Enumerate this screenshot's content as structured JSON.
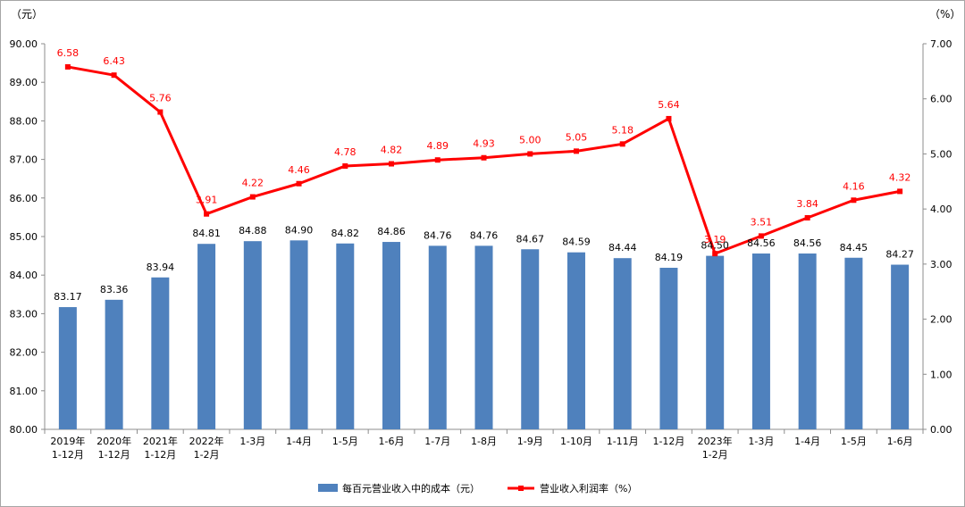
{
  "chart_data": {
    "type": "bar",
    "title": "",
    "y_left_unit": "（元）",
    "y_right_unit": "（%）",
    "y_left_lim": [
      80,
      90
    ],
    "y_left_ticks": [
      "80.00",
      "81.00",
      "82.00",
      "83.00",
      "84.00",
      "85.00",
      "86.00",
      "87.00",
      "88.00",
      "89.00",
      "90.00"
    ],
    "y_right_lim": [
      0,
      7
    ],
    "y_right_ticks": [
      "0.00",
      "1.00",
      "2.00",
      "3.00",
      "4.00",
      "5.00",
      "6.00",
      "7.00"
    ],
    "categories": [
      [
        "2019年",
        "1-12月"
      ],
      [
        "2020年",
        "1-12月"
      ],
      [
        "2021年",
        "1-12月"
      ],
      [
        "2022年",
        "1-2月"
      ],
      [
        "1-3月"
      ],
      [
        "1-4月"
      ],
      [
        "1-5月"
      ],
      [
        "1-6月"
      ],
      [
        "1-7月"
      ],
      [
        "1-8月"
      ],
      [
        "1-9月"
      ],
      [
        "1-10月"
      ],
      [
        "1-11月"
      ],
      [
        "1-12月"
      ],
      [
        "2023年",
        "1-2月"
      ],
      [
        "1-3月"
      ],
      [
        "1-4月"
      ],
      [
        "1-5月"
      ],
      [
        "1-6月"
      ]
    ],
    "series": [
      {
        "name": "每百元营业收入中的成本（元）",
        "type": "bar",
        "axis": "left",
        "color": "#4f81bd",
        "values": [
          83.17,
          83.36,
          83.94,
          84.81,
          84.88,
          84.9,
          84.82,
          84.86,
          84.76,
          84.76,
          84.67,
          84.59,
          84.44,
          84.19,
          84.5,
          84.56,
          84.56,
          84.45,
          84.27
        ]
      },
      {
        "name": "营业收入利润率（%）",
        "type": "line",
        "axis": "right",
        "color": "#ff0000",
        "values": [
          6.58,
          6.43,
          5.76,
          3.91,
          4.22,
          4.46,
          4.78,
          4.82,
          4.89,
          4.93,
          5.0,
          5.05,
          5.18,
          5.64,
          3.19,
          3.51,
          3.84,
          4.16,
          4.32
        ]
      }
    ],
    "grid": false,
    "legend_position": "bottom"
  }
}
